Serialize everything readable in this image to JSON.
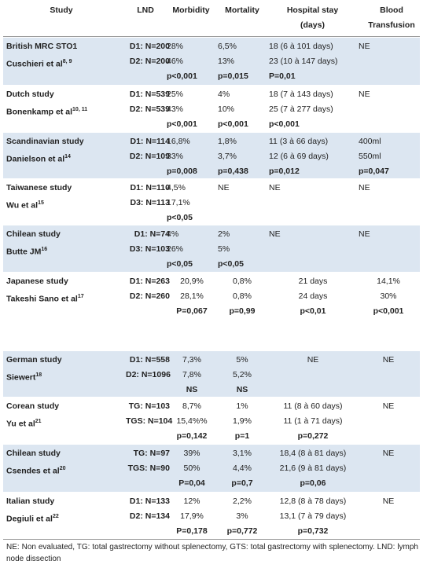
{
  "header": {
    "study": "Study",
    "lnd": "LND",
    "morbidity": "Morbidity",
    "mortality": "Mortality",
    "hospital": "Hospital stay (days)",
    "blood": "Blood Transfusion"
  },
  "rows": [
    {
      "study": [
        "British MRC STO1",
        "Cuschieri et al"
      ],
      "sup": "8, 9",
      "lnd": [
        "D1: N=200",
        "D2: N=200"
      ],
      "morbidity": [
        "28%",
        "46%",
        "p<0,001"
      ],
      "mortality": [
        "6,5%",
        "13%",
        "p=0,015"
      ],
      "hospital": [
        "18 (6 à 101 days)",
        "23 (10 à 147 days)",
        "P=0,01"
      ],
      "blood": [
        "NE"
      ]
    },
    {
      "study": [
        "Dutch study",
        "Bonenkamp et al"
      ],
      "sup": "10, 11",
      "lnd": [
        "D1: N=539",
        "D2: N=539"
      ],
      "morbidity": [
        "25%",
        "43%",
        "p<0,001"
      ],
      "mortality": [
        "4%",
        "10%",
        "p<0,001"
      ],
      "hospital": [
        "18 (7 à 143 days)",
        "25 (7 à 277 days)",
        "p<0,001"
      ],
      "blood": [
        "NE"
      ]
    },
    {
      "study": [
        "Scandinavian study",
        "Danielson et al"
      ],
      "sup": "14",
      "lnd": [
        "D1: N=114",
        "D2: N=109"
      ],
      "morbidity": [
        "16,8%",
        "33%",
        "p=0,008"
      ],
      "mortality": [
        "1,8%",
        "3,7%",
        "p=0,438"
      ],
      "hospital": [
        "11 (3 à 66 days)",
        "12 (6 à 69 days)",
        "p=0,012"
      ],
      "blood": [
        "400ml",
        "550ml",
        "p=0,047"
      ]
    },
    {
      "study": [
        "Taiwanese study",
        "Wu et al"
      ],
      "sup": "15",
      "lnd": [
        "D1: N=110",
        "D3: N=113"
      ],
      "morbidity": [
        "4,5%",
        "17,1%",
        "p<0,05"
      ],
      "mortality": [
        "NE"
      ],
      "hospital": [
        "NE"
      ],
      "blood": [
        "NE"
      ]
    },
    {
      "study": [
        "Chilean study",
        "Butte JM"
      ],
      "sup": "16",
      "lnd": [
        "D1: N=74",
        "D3: N=103"
      ],
      "morbidity": [
        "4%",
        "26%",
        "p<0,05"
      ],
      "mortality": [
        "2%",
        "5%",
        "p<0,05"
      ],
      "hospital": [
        "NE"
      ],
      "blood": [
        "NE"
      ]
    },
    {
      "study": [
        "Japanese study",
        "Takeshi Sano et al"
      ],
      "sup": "17",
      "lnd": [
        "D1: N=263",
        "D2: N=260"
      ],
      "morbidity": [
        "20,9%",
        "28,1%",
        "P=0,067"
      ],
      "mortality": [
        "0,8%",
        "0,8%",
        "p=0,99"
      ],
      "hospital": [
        "21 days",
        "24 days",
        "p<0,01"
      ],
      "blood": [
        "14,1%",
        "30%",
        "p<0,001"
      ]
    },
    {
      "study": [
        "German study",
        "Siewert"
      ],
      "sup": "18",
      "lnd": [
        "D1: N=558",
        "D2: N=1096"
      ],
      "morbidity": [
        "7,3%",
        "7,8%",
        "NS"
      ],
      "mortality": [
        "5%",
        "5,2%",
        "NS"
      ],
      "hospital": [
        "NE"
      ],
      "blood": [
        "NE"
      ]
    },
    {
      "study": [
        "Corean study",
        "Yu et al"
      ],
      "sup": "21",
      "lnd": [
        "TG: N=103",
        "TGS: N=104"
      ],
      "morbidity": [
        "8,7%",
        "15,4%%",
        "p=0,142"
      ],
      "mortality": [
        "1%",
        "1,9%",
        "p=1"
      ],
      "hospital": [
        "11 (8 à 60 days)",
        "11 (1 à 71 days)",
        "p=0,272"
      ],
      "blood": [
        "NE"
      ]
    },
    {
      "study": [
        "Chilean study",
        "Csendes et al"
      ],
      "sup": "20",
      "lnd": [
        "TG: N=97",
        "TGS: N=90"
      ],
      "morbidity": [
        "39%",
        "50%",
        "P=0,04"
      ],
      "mortality": [
        "3,1%",
        "4,4%",
        "p=0,7"
      ],
      "hospital": [
        "18,4 (8 à 81 days)",
        "21,6 (9 à 81 days)",
        "p=0,06"
      ],
      "blood": [
        "NE"
      ]
    },
    {
      "study": [
        "Italian study",
        "Degiuli et al"
      ],
      "sup": "22",
      "lnd": [
        "D1: N=133",
        "D2: N=134"
      ],
      "morbidity": [
        "12%",
        "17,9%",
        "P=0,178"
      ],
      "mortality": [
        "2,2%",
        "3%",
        "p=0,772"
      ],
      "hospital": [
        "12,8 (8 à 78 days)",
        "13,1 (7 à 79 days)",
        "p=0,732"
      ],
      "blood": [
        "NE"
      ]
    }
  ],
  "footnote": "NE: Non evaluated, TG: total gastrectomy without splenectomy, GTS: total gastrectomy with splenectomy. LND: lymph node dissection"
}
